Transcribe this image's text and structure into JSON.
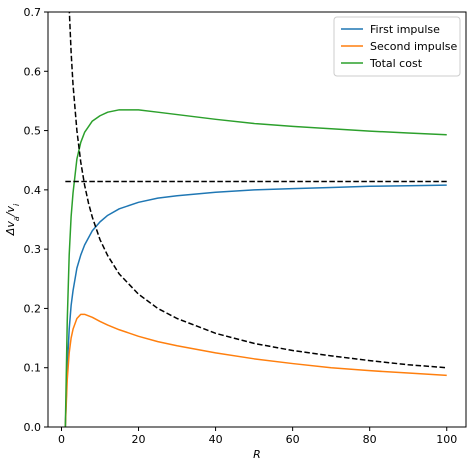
{
  "chart_data": {
    "type": "line",
    "title": "",
    "xlabel": "R",
    "ylabel": "Δv_a/v_i",
    "xlim": [
      -3.5,
      105
    ],
    "ylim": [
      0,
      0.7
    ],
    "xticks": [
      0,
      20,
      40,
      60,
      80,
      100
    ],
    "yticks": [
      0.0,
      0.1,
      0.2,
      0.3,
      0.4,
      0.5,
      0.6,
      0.7
    ],
    "grid": false,
    "legend_position": "top-right",
    "series": [
      {
        "name": "First impulse",
        "color": "#1f77b4",
        "style": "solid",
        "x": [
          1,
          1.5,
          2,
          2.5,
          3,
          4,
          5,
          6,
          8,
          10,
          12,
          15,
          20,
          25,
          30,
          40,
          50,
          60,
          70,
          80,
          90,
          100
        ],
        "y": [
          0.0,
          0.1,
          0.165,
          0.205,
          0.23,
          0.268,
          0.29,
          0.307,
          0.331,
          0.346,
          0.357,
          0.368,
          0.379,
          0.386,
          0.39,
          0.396,
          0.4,
          0.402,
          0.404,
          0.406,
          0.407,
          0.408
        ]
      },
      {
        "name": "Second impulse",
        "color": "#ff7f0e",
        "style": "solid",
        "x": [
          1,
          1.5,
          2,
          2.5,
          3,
          4,
          5,
          6,
          8,
          10,
          12,
          15,
          20,
          25,
          30,
          40,
          50,
          60,
          70,
          80,
          90,
          100
        ],
        "y": [
          0.0,
          0.08,
          0.125,
          0.15,
          0.165,
          0.183,
          0.19,
          0.19,
          0.185,
          0.178,
          0.172,
          0.164,
          0.153,
          0.144,
          0.137,
          0.125,
          0.115,
          0.107,
          0.1,
          0.095,
          0.091,
          0.087
        ]
      },
      {
        "name": "Total cost",
        "color": "#2ca02c",
        "style": "solid",
        "x": [
          1,
          1.5,
          2,
          2.5,
          3,
          4,
          5,
          6,
          8,
          10,
          12,
          15,
          20,
          25,
          30,
          40,
          50,
          60,
          70,
          80,
          90,
          100
        ],
        "y": [
          0.0,
          0.18,
          0.29,
          0.355,
          0.395,
          0.452,
          0.48,
          0.497,
          0.516,
          0.525,
          0.531,
          0.535,
          0.535,
          0.531,
          0.527,
          0.519,
          0.512,
          0.507,
          0.503,
          0.499,
          0.496,
          0.493
        ]
      },
      {
        "name": "",
        "color": "#000000",
        "style": "dashed",
        "x": [
          1,
          100
        ],
        "y": [
          0.414,
          0.414
        ]
      },
      {
        "name": "",
        "color": "#000000",
        "style": "dashed",
        "x": [
          2.0,
          2.5,
          3,
          4,
          5,
          6,
          7,
          8,
          10,
          12,
          15,
          20,
          25,
          30,
          40,
          50,
          60,
          70,
          80,
          90,
          100
        ],
        "y": [
          0.707,
          0.632,
          0.577,
          0.5,
          0.447,
          0.408,
          0.378,
          0.354,
          0.316,
          0.289,
          0.258,
          0.224,
          0.2,
          0.183,
          0.158,
          0.141,
          0.129,
          0.12,
          0.112,
          0.105,
          0.1
        ]
      }
    ]
  }
}
